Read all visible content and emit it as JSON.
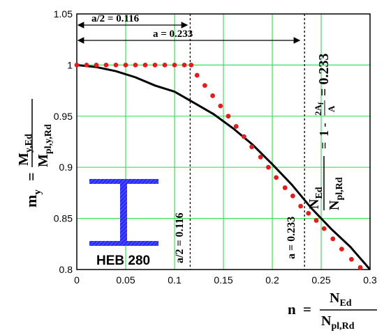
{
  "chart_data": {
    "type": "line",
    "xlim": [
      0,
      0.3
    ],
    "ylim": [
      0.8,
      1.05
    ],
    "x_ticks": [
      "0",
      "0.05",
      "0.1",
      "0.15",
      "0.2",
      "0.25",
      "0.3"
    ],
    "y_ticks": [
      "0.8",
      "0.85",
      "0.9",
      "0.95",
      "1",
      "1.05"
    ],
    "grid": true,
    "grid_color": "#3ee05a",
    "series": [
      {
        "style": "solid",
        "color": "#000000",
        "points": [
          [
            0,
            1.0
          ],
          [
            0.02,
            0.998
          ],
          [
            0.04,
            0.994
          ],
          [
            0.06,
            0.988
          ],
          [
            0.08,
            0.98
          ],
          [
            0.1,
            0.974
          ],
          [
            0.12,
            0.963
          ],
          [
            0.14,
            0.952
          ],
          [
            0.16,
            0.938
          ],
          [
            0.18,
            0.922
          ],
          [
            0.2,
            0.903
          ],
          [
            0.22,
            0.883
          ],
          [
            0.24,
            0.86
          ],
          [
            0.26,
            0.84
          ],
          [
            0.28,
            0.822
          ],
          [
            0.3,
            0.8
          ]
        ]
      },
      {
        "style": "dotted",
        "color": "#e21d1d",
        "points": [
          [
            0,
            1.0
          ],
          [
            0.01,
            1.0
          ],
          [
            0.02,
            1.0
          ],
          [
            0.03,
            1.0
          ],
          [
            0.04,
            1.0
          ],
          [
            0.05,
            1.0
          ],
          [
            0.06,
            1.0
          ],
          [
            0.07,
            1.0
          ],
          [
            0.08,
            1.0
          ],
          [
            0.09,
            1.0
          ],
          [
            0.1,
            1.0
          ],
          [
            0.11,
            1.0
          ],
          [
            0.117,
            1.0
          ],
          [
            0.123,
            0.99
          ],
          [
            0.131,
            0.98
          ],
          [
            0.139,
            0.97
          ],
          [
            0.147,
            0.96
          ],
          [
            0.155,
            0.95
          ],
          [
            0.163,
            0.94
          ],
          [
            0.171,
            0.93
          ],
          [
            0.179,
            0.92
          ],
          [
            0.188,
            0.91
          ],
          [
            0.196,
            0.9
          ],
          [
            0.204,
            0.89
          ],
          [
            0.213,
            0.88
          ],
          [
            0.221,
            0.872
          ],
          [
            0.229,
            0.862
          ],
          [
            0.237,
            0.855
          ],
          [
            0.245,
            0.848
          ],
          [
            0.253,
            0.84
          ],
          [
            0.262,
            0.83
          ],
          [
            0.271,
            0.82
          ],
          [
            0.281,
            0.81
          ],
          [
            0.29,
            0.802
          ]
        ]
      }
    ],
    "vlines": [
      0.116,
      0.233
    ],
    "annotations": {
      "half_a_top": "a/2 = 0.116",
      "a_top": "a = 0.233",
      "half_a_vertical": "a/2 = 0.116",
      "a_vertical": "a = 0.233",
      "profile_label": "HEB 280",
      "profile_color": "#1a1aee"
    },
    "y_axis_label": {
      "symbol": "m",
      "symbol_sub": "y",
      "equals": "=",
      "num": "M",
      "num_sub": "y,Ed",
      "den": "M",
      "den_sub": "pl,y,Rd"
    },
    "x_axis_label": {
      "symbol": "n",
      "equals": "=",
      "num": "N",
      "num_sub": "Ed",
      "den": "N",
      "den_sub": "pl,Rd"
    },
    "formula": {
      "num": "N",
      "num_sub": "Ed",
      "den": "N",
      "den_sub": "pl,Rd",
      "eq": "=",
      "one_minus": "1 -",
      "frac_num": "2A",
      "frac_num_sub": "f",
      "frac_den": "A",
      "eq2": "= 0.233"
    }
  }
}
